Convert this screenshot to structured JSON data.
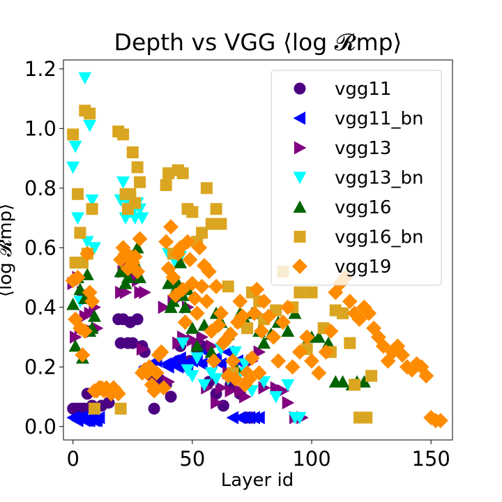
{
  "chart_data": {
    "type": "scatter",
    "title": "Depth vs VGG ⟨log 𝓡mp⟩",
    "xlabel": "Layer id",
    "ylabel": "⟨log 𝓡mp⟩",
    "xlim": [
      -4,
      159
    ],
    "ylim": [
      -0.045,
      1.23
    ],
    "xticks": [
      0,
      50,
      100,
      150
    ],
    "yticks": [
      0.0,
      0.2,
      0.4,
      0.6,
      0.8,
      1.0,
      1.2
    ],
    "ytick_labels": [
      "0.0",
      "0.2",
      "0.4",
      "0.6",
      "0.8",
      "1.0",
      "1.2"
    ],
    "grid": false,
    "legend_position": "top-right",
    "series": [
      {
        "name": "vgg11",
        "marker": "circle",
        "color": "#4B0082",
        "x": [
          0,
          1,
          2,
          3,
          4,
          5,
          6,
          8,
          12,
          15,
          19,
          20,
          21,
          23,
          24,
          25,
          27,
          29,
          30,
          33,
          34,
          36,
          39,
          41,
          44,
          45,
          48,
          49,
          52,
          54,
          57,
          60,
          63,
          66,
          70,
          73,
          75
        ],
        "y": [
          0.06,
          0.06,
          0.06,
          0.06,
          0.06,
          0.06,
          0.11,
          0.07,
          0.07,
          0.08,
          0.36,
          0.28,
          0.36,
          0.28,
          0.35,
          0.28,
          0.36,
          0.27,
          0.25,
          0.17,
          0.06,
          0.16,
          0.14,
          0.1,
          0.22,
          0.27,
          0.2,
          0.22,
          0.26,
          0.27,
          0.15,
          0.11,
          0.07,
          0.14,
          0.11,
          0.03,
          0.03
        ]
      },
      {
        "name": "vgg11_bn",
        "marker": "triangle-left",
        "color": "#0000FF",
        "x": [
          0,
          1,
          2,
          3,
          4,
          5,
          6,
          7,
          8,
          9,
          10,
          11,
          30,
          33,
          35,
          39,
          40,
          42,
          44,
          45,
          47,
          48,
          50,
          52,
          54,
          56,
          58,
          60,
          62,
          65,
          66,
          67,
          69,
          70,
          72,
          74,
          76,
          78
        ],
        "y": [
          0.03,
          0.03,
          0.02,
          0.03,
          0.03,
          0.02,
          0.02,
          0.02,
          0.03,
          0.02,
          0.02,
          0.03,
          0.2,
          0.2,
          0.22,
          0.21,
          0.2,
          0.22,
          0.2,
          0.23,
          0.21,
          0.21,
          0.22,
          0.23,
          0.21,
          0.25,
          0.22,
          0.23,
          0.21,
          0.25,
          0.22,
          0.03,
          0.22,
          0.03,
          0.03,
          0.03,
          0.03,
          0.03
        ]
      },
      {
        "name": "vgg13",
        "marker": "triangle-right",
        "color": "#800080",
        "x": [
          0,
          1,
          2,
          3,
          4,
          5,
          6,
          7,
          8,
          9,
          10,
          20,
          21,
          22,
          23,
          24,
          25,
          26,
          27,
          28,
          29,
          30,
          38,
          40,
          42,
          44,
          46,
          48,
          50,
          52,
          54,
          56,
          58,
          60,
          62,
          65,
          66,
          70,
          72,
          75,
          78,
          80,
          85,
          88,
          90,
          93,
          96
        ],
        "y": [
          0.48,
          0.3,
          0.5,
          0.33,
          0.45,
          0.37,
          0.43,
          0.38,
          0.32,
          0.4,
          0.33,
          0.45,
          0.52,
          0.45,
          0.53,
          0.55,
          0.5,
          0.57,
          0.49,
          0.45,
          0.26,
          0.45,
          0.4,
          0.15,
          0.42,
          0.28,
          0.3,
          0.4,
          0.29,
          0.28,
          0.3,
          0.13,
          0.27,
          0.08,
          0.13,
          0.18,
          0.12,
          0.12,
          0.1,
          0.22,
          0.25,
          0.13,
          0.13,
          0.12,
          0.08,
          0.03,
          0.03
        ]
      },
      {
        "name": "vgg13_bn",
        "marker": "triangle-down",
        "color": "#00FFFF",
        "x": [
          0,
          1,
          2,
          3,
          5,
          6,
          7,
          8,
          9,
          20,
          21,
          22,
          23,
          24,
          25,
          26,
          27,
          28,
          29,
          40,
          43,
          45,
          46,
          48,
          50,
          52,
          55,
          58,
          60,
          62,
          65,
          68,
          70,
          72,
          75,
          80,
          85,
          90,
          93,
          95
        ],
        "y": [
          0.87,
          0.94,
          0.7,
          0.42,
          1.17,
          0.62,
          1.01,
          0.76,
          0.6,
          0.76,
          0.82,
          0.7,
          0.75,
          0.72,
          0.72,
          0.7,
          0.75,
          0.73,
          0.7,
          0.58,
          0.55,
          0.57,
          0.28,
          0.19,
          0.17,
          0.23,
          0.14,
          0.18,
          0.16,
          0.26,
          0.16,
          0.25,
          0.18,
          0.21,
          0.12,
          0.15,
          0.1,
          0.14,
          0.03,
          0.03
        ]
      },
      {
        "name": "vgg16",
        "marker": "triangle-up",
        "color": "#006400",
        "x": [
          0,
          1,
          2,
          3,
          4,
          5,
          6,
          7,
          8,
          9,
          20,
          21,
          22,
          23,
          24,
          25,
          26,
          27,
          28,
          40,
          41,
          42,
          43,
          44,
          45,
          46,
          47,
          48,
          50,
          52,
          55,
          58,
          60,
          62,
          65,
          68,
          70,
          72,
          75,
          78,
          80,
          83,
          86,
          90,
          93,
          97,
          100,
          103,
          107,
          110,
          113,
          117,
          119,
          122
        ],
        "y": [
          0.41,
          0.27,
          0.5,
          0.46,
          0.23,
          0.43,
          0.51,
          0.32,
          0.33,
          0.37,
          0.52,
          0.58,
          0.48,
          0.5,
          0.53,
          0.57,
          0.55,
          0.6,
          0.5,
          0.48,
          0.4,
          0.42,
          0.46,
          0.48,
          0.55,
          0.44,
          0.4,
          0.46,
          0.33,
          0.27,
          0.34,
          0.25,
          0.38,
          0.35,
          0.31,
          0.2,
          0.38,
          0.36,
          0.38,
          0.32,
          0.28,
          0.31,
          0.35,
          0.32,
          0.38,
          0.27,
          0.3,
          0.3,
          0.28,
          0.15,
          0.15,
          0.14,
          0.15,
          0.15
        ]
      },
      {
        "name": "vgg16_bn",
        "marker": "square",
        "color": "#DAA520",
        "x": [
          0,
          1,
          2,
          3,
          4,
          5,
          6,
          7,
          8,
          9,
          19,
          20,
          21,
          22,
          23,
          24,
          25,
          26,
          27,
          28,
          39,
          40,
          42,
          44,
          46,
          48,
          50,
          52,
          54,
          56,
          58,
          60,
          62,
          65,
          67,
          70,
          73,
          75,
          78,
          80,
          85,
          88,
          92,
          95,
          98,
          100,
          105,
          108,
          110,
          113,
          116,
          118,
          120,
          123,
          125
        ],
        "y": [
          0.98,
          0.55,
          0.78,
          0.65,
          0.55,
          1.06,
          0.58,
          1.05,
          0.73,
          0.06,
          0.99,
          0.06,
          0.98,
          0.78,
          0.73,
          0.78,
          0.92,
          0.75,
          0.87,
          0.82,
          0.81,
          0.85,
          0.58,
          0.86,
          0.85,
          0.73,
          0.72,
          0.62,
          0.65,
          0.8,
          0.68,
          0.73,
          0.68,
          0.47,
          0.18,
          0.35,
          0.33,
          0.45,
          0.42,
          0.36,
          0.39,
          0.52,
          0.4,
          0.45,
          0.26,
          0.45,
          0.33,
          0.25,
          0.39,
          0.38,
          0.28,
          0.14,
          0.03,
          0.03,
          0.17
        ]
      },
      {
        "name": "vgg19",
        "marker": "diamond",
        "color": "#FF8C00",
        "x": [
          0,
          1,
          2,
          3,
          4,
          5,
          6,
          7,
          8,
          9,
          10,
          11,
          12,
          13,
          14,
          15,
          16,
          17,
          18,
          19,
          20,
          21,
          22,
          23,
          24,
          25,
          26,
          27,
          28,
          29,
          30,
          31,
          32,
          33,
          34,
          35,
          36,
          37,
          38,
          39,
          40,
          41,
          42,
          43,
          44,
          45,
          46,
          47,
          48,
          49,
          50,
          51,
          52,
          53,
          54,
          55,
          56,
          57,
          58,
          59,
          60,
          61,
          62,
          63,
          64,
          65,
          66,
          67,
          68,
          69,
          70,
          71,
          72,
          73,
          74,
          75,
          76,
          77,
          78,
          79,
          80,
          82,
          84,
          86,
          88,
          90,
          92,
          95,
          98,
          100,
          103,
          106,
          108,
          110,
          112,
          114,
          116,
          118,
          120,
          122,
          124,
          126,
          128,
          130,
          132,
          134,
          136,
          138,
          140,
          142,
          144,
          146,
          148,
          150,
          152,
          154
        ],
        "y": [
          0.49,
          0.36,
          0.5,
          0.33,
          0.24,
          0.32,
          0.58,
          0.45,
          0.42,
          0.12,
          0.12,
          0.13,
          0.13,
          0.12,
          0.13,
          0.12,
          0.11,
          0.13,
          0.12,
          0.11,
          0.56,
          0.6,
          0.58,
          0.53,
          0.57,
          0.55,
          0.57,
          0.52,
          0.63,
          0.18,
          0.19,
          0.18,
          0.2,
          0.14,
          0.12,
          0.18,
          0.24,
          0.25,
          0.13,
          0.62,
          0.53,
          0.67,
          0.5,
          0.44,
          0.58,
          0.6,
          0.46,
          0.35,
          0.62,
          0.56,
          0.48,
          0.43,
          0.38,
          0.6,
          0.47,
          0.54,
          0.42,
          0.52,
          0.32,
          0.22,
          0.47,
          0.34,
          0.38,
          0.28,
          0.29,
          0.17,
          0.31,
          0.22,
          0.16,
          0.35,
          0.42,
          0.37,
          0.14,
          0.18,
          0.16,
          0.23,
          0.38,
          0.46,
          0.18,
          0.32,
          0.42,
          0.37,
          0.3,
          0.22,
          0.35,
          0.4,
          0.2,
          0.25,
          0.3,
          0.22,
          0.18,
          0.25,
          0.32,
          0.45,
          0.48,
          0.5,
          0.42,
          0.38,
          0.36,
          0.4,
          0.38,
          0.33,
          0.3,
          0.27,
          0.22,
          0.25,
          0.27,
          0.24,
          0.2,
          0.19,
          0.21,
          0.2,
          0.17,
          0.03,
          0.02,
          0.02
        ]
      }
    ]
  }
}
